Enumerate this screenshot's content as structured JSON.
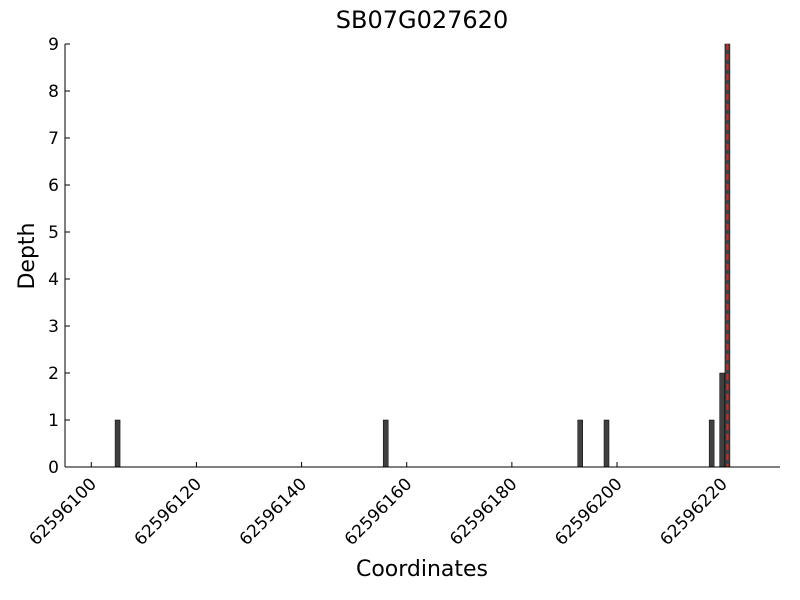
{
  "chart_data": {
    "type": "bar",
    "title": "SB07G027620",
    "x_label": "Coordinates",
    "y_label": "Depth",
    "x": [
      62596105,
      62596156,
      62596193,
      62596198,
      62596218,
      62596220,
      62596221
    ],
    "values": [
      1,
      1,
      1,
      1,
      1,
      2,
      9
    ],
    "color": "#404040",
    "vline": {
      "x": 62596221,
      "color": "#e3201b"
    },
    "xlim": [
      62596095,
      62596231
    ],
    "xticks": [
      62596100,
      62596120,
      62596140,
      62596160,
      62596180,
      62596200,
      62596220
    ],
    "ylim": [
      0,
      9
    ],
    "yticks": [
      0,
      1,
      2,
      3,
      4,
      5,
      6,
      7,
      8,
      9
    ]
  }
}
